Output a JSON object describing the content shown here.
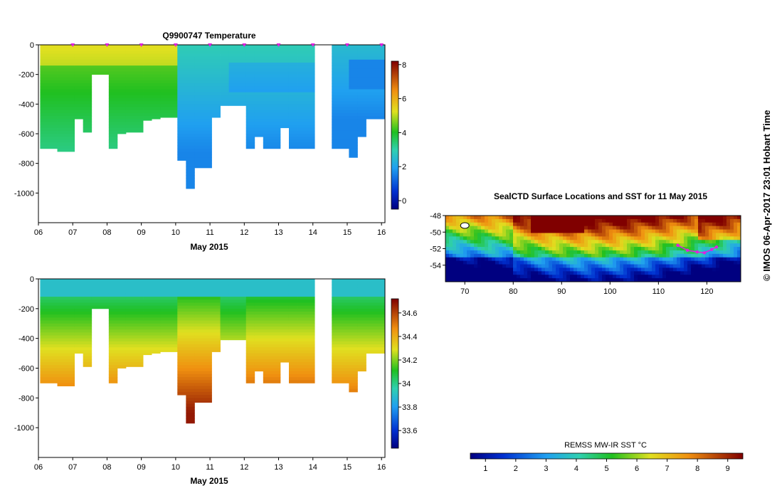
{
  "credit": "© IMOS 06-Apr-2017 23:01 Hobart Time",
  "colors": {
    "magenta": "#e020e0",
    "axis": "#000000"
  },
  "chart_data": [
    {
      "type": "heatmap",
      "title": "Q9900747  Temperature",
      "xlabel": "May 2015",
      "ylabel": "",
      "x_ticks": [
        "06",
        "07",
        "08",
        "09",
        "10",
        "11",
        "12",
        "13",
        "14",
        "15",
        "16"
      ],
      "x_range": [
        6,
        16.1
      ],
      "y_ticks": [
        "0",
        "-200",
        "-400",
        "-600",
        "-800",
        "-1000"
      ],
      "y_range": [
        -1200,
        0
      ],
      "colorbar": {
        "ticks": [
          "0",
          "2",
          "4",
          "6",
          "8"
        ],
        "range": [
          -0.5,
          8.2
        ]
      },
      "profile_times": [
        6.05,
        6.55,
        7.05,
        7.3,
        7.55,
        8.05,
        8.3,
        8.55,
        9.05,
        9.3,
        9.55,
        10.05,
        10.3,
        10.55,
        11.05,
        11.3,
        11.55,
        12.05,
        12.3,
        12.55,
        13.05,
        13.3,
        13.55,
        14.05,
        14.3,
        14.55,
        15.05,
        15.3,
        15.55
      ],
      "profile_depths": [
        700,
        720,
        500,
        590,
        200,
        700,
        600,
        590,
        510,
        500,
        490,
        780,
        970,
        830,
        490,
        410,
        410,
        700,
        620,
        700,
        560,
        700,
        700,
        0,
        0,
        700,
        760,
        620,
        500
      ],
      "surface_marks": [
        7,
        8,
        9,
        10,
        11,
        12,
        13,
        14,
        15,
        16
      ]
    },
    {
      "type": "heatmap",
      "title": "",
      "xlabel": "May 2015",
      "ylabel": "",
      "x_ticks": [
        "06",
        "07",
        "08",
        "09",
        "10",
        "11",
        "12",
        "13",
        "14",
        "15",
        "16"
      ],
      "x_range": [
        6,
        16.1
      ],
      "y_ticks": [
        "0",
        "-200",
        "-400",
        "-600",
        "-800",
        "-1000"
      ],
      "y_range": [
        -1200,
        0
      ],
      "colorbar": {
        "ticks": [
          "33.6",
          "33.8",
          "34",
          "34.2",
          "34.4",
          "34.6"
        ],
        "range": [
          33.45,
          34.72
        ]
      }
    },
    {
      "type": "heatmap",
      "title": "SealCTD Surface Locations and SST for 11 May 2015",
      "xlabel": "",
      "ylabel": "",
      "x_ticks": [
        "70",
        "80",
        "90",
        "100",
        "110",
        "120"
      ],
      "x_range": [
        66,
        127
      ],
      "y_ticks": [
        "-48",
        "-50",
        "-52",
        "-54"
      ],
      "y_range": [
        -56,
        -48
      ],
      "colorbar": {
        "label": "REMSS MW-IR SST °C",
        "ticks": [
          "1",
          "2",
          "3",
          "4",
          "5",
          "6",
          "7",
          "8",
          "9"
        ],
        "range": [
          0.5,
          9.5
        ]
      },
      "track_lon": [
        114,
        116,
        118,
        119.5,
        121,
        122
      ],
      "track_lat": [
        -51.6,
        -52.2,
        -52.4,
        -52.5,
        -52.1,
        -51.8
      ]
    }
  ]
}
